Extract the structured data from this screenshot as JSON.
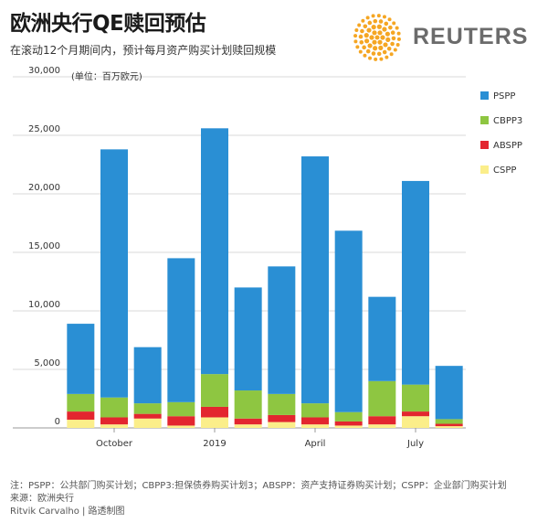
{
  "header": {
    "title": "欧洲央行QE赎回预估",
    "subtitle": "在滚动12个月期间内，预计每月资产购买计划赎回规模",
    "brand": "REUTERS"
  },
  "colors": {
    "PSPP": "#2a8fd4",
    "CBPP3": "#8ec641",
    "ABSPP": "#e3262f",
    "CSPP": "#fbee8a",
    "logo": "#f5a623"
  },
  "chart_data": {
    "type": "bar",
    "stacked": true,
    "unit_label": "(单位：百万欧元)",
    "ylim": [
      0,
      30000
    ],
    "yticks": [
      0,
      5000,
      10000,
      15000,
      20000,
      25000,
      30000
    ],
    "ytick_labels": [
      "0",
      "5,000",
      "10,000",
      "15,000",
      "20,000",
      "25,000",
      "30,000"
    ],
    "grid": true,
    "legend_position": "right",
    "x_labels": [
      {
        "index": 1,
        "label": "October"
      },
      {
        "index": 4,
        "label": "2019"
      },
      {
        "index": 7,
        "label": "April"
      },
      {
        "index": 10,
        "label": "July"
      }
    ],
    "series": [
      {
        "name": "CSPP",
        "values": [
          700,
          300,
          800,
          200,
          900,
          300,
          500,
          300,
          200,
          300,
          1000,
          150
        ]
      },
      {
        "name": "ABSPP",
        "values": [
          700,
          600,
          400,
          800,
          900,
          500,
          600,
          600,
          350,
          700,
          400,
          200
        ]
      },
      {
        "name": "CBPP3",
        "values": [
          1500,
          1700,
          900,
          1200,
          2800,
          2400,
          1800,
          1200,
          800,
          3000,
          2300,
          400
        ]
      },
      {
        "name": "PSPP",
        "values": [
          6000,
          21200,
          4800,
          12300,
          21000,
          8800,
          10900,
          21100,
          15500,
          7200,
          17400,
          4550
        ]
      }
    ],
    "legend_order": [
      "PSPP",
      "CBPP3",
      "ABSPP",
      "CSPP"
    ]
  },
  "footer": {
    "note": "注：PSPP：公共部门购买计划；CBPP3:担保债券购买计划3；ABSPP：资产支持证券购买计划；CSPP：企业部门购买计划",
    "source": "来源：欧洲央行",
    "credit": "Ritvik Carvalho | 路透制图"
  }
}
